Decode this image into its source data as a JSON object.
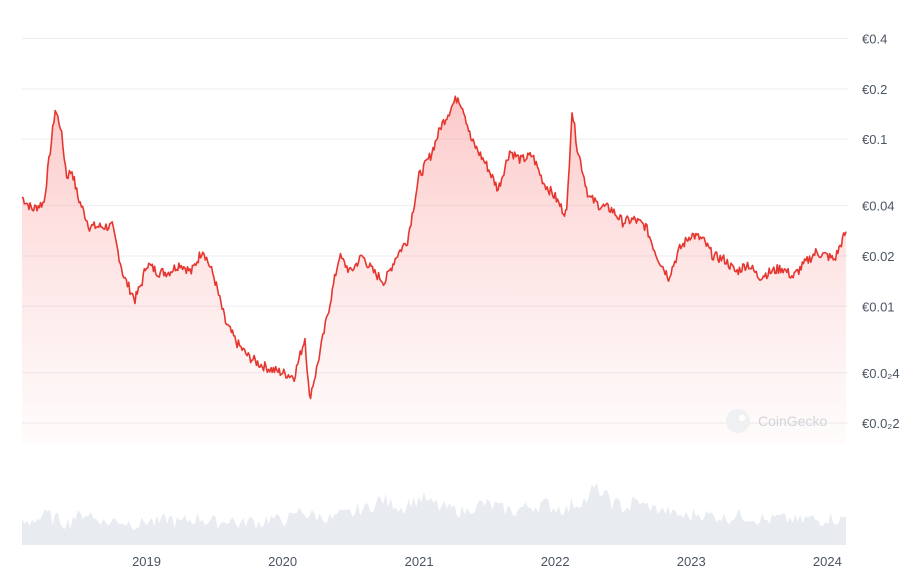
{
  "chart_data": {
    "type": "area",
    "y_scale": "log",
    "currency": "€",
    "ylim": [
      0.0015,
      0.45
    ],
    "y_ticks": [
      {
        "value": 0.4,
        "label": "€0.4"
      },
      {
        "value": 0.2,
        "label": "€0.2"
      },
      {
        "value": 0.1,
        "label": "€0.1"
      },
      {
        "value": 0.04,
        "label": "€0.04"
      },
      {
        "value": 0.02,
        "label": "€0.02"
      },
      {
        "value": 0.01,
        "label": "€0.01"
      },
      {
        "value": 0.004,
        "label": "€0.0₂4"
      },
      {
        "value": 0.002,
        "label": "€0.0₂2"
      }
    ],
    "x_ticks": [
      "2019",
      "2020",
      "2021",
      "2022",
      "2023",
      "2024"
    ],
    "x_range": [
      "2018-02-01",
      "2024-02-20"
    ],
    "series": [
      {
        "color": "#e5372f",
        "x": [
          "2018-02-01",
          "2018-03-01",
          "2018-04-01",
          "2018-05-01",
          "2018-05-15",
          "2018-06-01",
          "2018-06-15",
          "2018-07-01",
          "2018-08-01",
          "2018-09-01",
          "2018-10-01",
          "2018-11-01",
          "2018-12-01",
          "2018-12-20",
          "2019-01-01",
          "2019-02-01",
          "2019-03-01",
          "2019-04-01",
          "2019-05-01",
          "2019-06-01",
          "2019-07-01",
          "2019-08-01",
          "2019-09-01",
          "2019-10-01",
          "2019-11-01",
          "2019-12-01",
          "2020-01-01",
          "2020-02-01",
          "2020-03-01",
          "2020-03-13",
          "2020-04-01",
          "2020-05-01",
          "2020-06-01",
          "2020-07-01",
          "2020-08-01",
          "2020-09-01",
          "2020-10-01",
          "2020-11-01",
          "2020-12-01",
          "2021-01-01",
          "2021-02-01",
          "2021-03-01",
          "2021-04-01",
          "2021-04-15",
          "2021-05-01",
          "2021-05-20",
          "2021-06-01",
          "2021-07-01",
          "2021-08-01",
          "2021-09-01",
          "2021-10-01",
          "2021-11-01",
          "2021-12-01",
          "2022-01-01",
          "2022-01-20",
          "2022-02-01",
          "2022-02-15",
          "2022-03-01",
          "2022-04-01",
          "2022-05-01",
          "2022-06-01",
          "2022-07-01",
          "2022-08-01",
          "2022-09-01",
          "2022-10-01",
          "2022-11-01",
          "2022-12-01",
          "2023-01-01",
          "2023-02-01",
          "2023-03-01",
          "2023-04-01",
          "2023-05-01",
          "2023-06-01",
          "2023-07-01",
          "2023-08-01",
          "2023-09-01",
          "2023-10-01",
          "2023-11-01",
          "2023-12-01",
          "2024-01-01",
          "2024-01-20",
          "2024-02-20"
        ],
        "y": [
          0.045,
          0.038,
          0.042,
          0.15,
          0.12,
          0.06,
          0.065,
          0.045,
          0.03,
          0.03,
          0.03,
          0.015,
          0.011,
          0.014,
          0.018,
          0.016,
          0.016,
          0.018,
          0.016,
          0.022,
          0.015,
          0.008,
          0.006,
          0.005,
          0.0045,
          0.0042,
          0.004,
          0.0038,
          0.0065,
          0.0028,
          0.0042,
          0.009,
          0.02,
          0.016,
          0.02,
          0.016,
          0.014,
          0.02,
          0.025,
          0.06,
          0.08,
          0.12,
          0.16,
          0.18,
          0.15,
          0.1,
          0.09,
          0.07,
          0.05,
          0.085,
          0.075,
          0.08,
          0.055,
          0.045,
          0.038,
          0.036,
          0.15,
          0.09,
          0.045,
          0.04,
          0.038,
          0.032,
          0.033,
          0.03,
          0.02,
          0.015,
          0.022,
          0.027,
          0.025,
          0.02,
          0.019,
          0.016,
          0.018,
          0.015,
          0.016,
          0.017,
          0.015,
          0.018,
          0.021,
          0.02,
          0.019,
          0.028
        ]
      }
    ],
    "volume": {
      "color": "#e8ecf1",
      "values": [
        0.3,
        0.35,
        0.4,
        0.35,
        0.3,
        0.38,
        0.42,
        0.35,
        0.3,
        0.33,
        0.3,
        0.28,
        0.32,
        0.3,
        0.35,
        0.3,
        0.33,
        0.36,
        0.32,
        0.3,
        0.34,
        0.28,
        0.32,
        0.3,
        0.35,
        0.33,
        0.36,
        0.45,
        0.4,
        0.38,
        0.35,
        0.4,
        0.42,
        0.48,
        0.52,
        0.6,
        0.55,
        0.5,
        0.58,
        0.62,
        0.55,
        0.5,
        0.48,
        0.45,
        0.5,
        0.55,
        0.52,
        0.48,
        0.45,
        0.5,
        0.52,
        0.55,
        0.5,
        0.48,
        0.55,
        0.6,
        0.75,
        0.65,
        0.55,
        0.5,
        0.58,
        0.52,
        0.48,
        0.45,
        0.4,
        0.38,
        0.42,
        0.4,
        0.38,
        0.36,
        0.4,
        0.38,
        0.35,
        0.33,
        0.36,
        0.34,
        0.32,
        0.35,
        0.33,
        0.36,
        0.34,
        0.38
      ]
    }
  },
  "watermark": {
    "text": "CoinGecko"
  }
}
